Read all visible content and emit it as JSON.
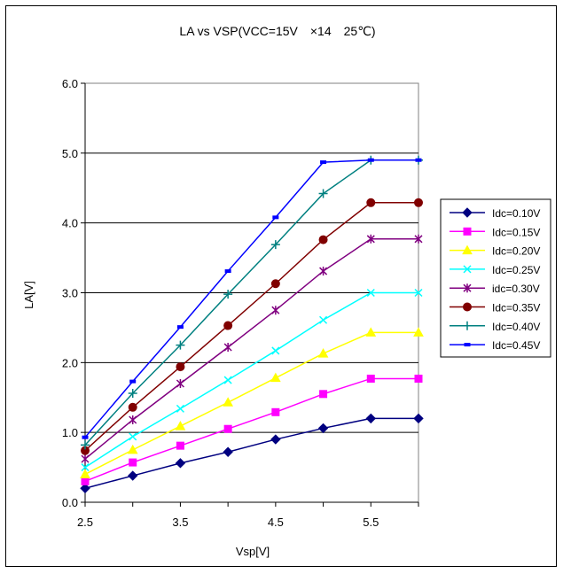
{
  "chart_data": {
    "type": "line",
    "title": "LA vs VSP(VCC=15V　×14　25℃)",
    "xlabel": "Vsp[V]",
    "ylabel": "LA[V]",
    "x": [
      2.5,
      3.0,
      3.5,
      4.0,
      4.5,
      5.0,
      5.5,
      6.0
    ],
    "xlim": [
      2.5,
      6.0
    ],
    "ylim": [
      0.0,
      6.0
    ],
    "x_ticks": [
      "2.5",
      "3.5",
      "4.5",
      "5.5"
    ],
    "y_ticks": [
      "0.0",
      "1.0",
      "2.0",
      "3.0",
      "4.0",
      "5.0",
      "6.0"
    ],
    "grid": "horizontal",
    "legend_position": "right",
    "series": [
      {
        "name": "Idc=0.10V",
        "color": "#000080",
        "marker": "diamond",
        "values": [
          0.2,
          0.38,
          0.56,
          0.72,
          0.9,
          1.06,
          1.2,
          1.2
        ]
      },
      {
        "name": "Idc=0.15V",
        "color": "#ff00ff",
        "marker": "square",
        "values": [
          0.3,
          0.57,
          0.81,
          1.05,
          1.29,
          1.55,
          1.77,
          1.77
        ]
      },
      {
        "name": "Idc=0.20V",
        "color": "#ffff00",
        "marker": "triangle",
        "values": [
          0.4,
          0.75,
          1.09,
          1.43,
          1.78,
          2.13,
          2.43,
          2.43
        ]
      },
      {
        "name": "Idc=0.25V",
        "color": "#00ffff",
        "marker": "x",
        "values": [
          0.5,
          0.94,
          1.34,
          1.75,
          2.17,
          2.61,
          3.0,
          3.0
        ]
      },
      {
        "name": "idc=0.30V",
        "color": "#800080",
        "marker": "star",
        "values": [
          0.62,
          1.18,
          1.7,
          2.22,
          2.75,
          3.31,
          3.77,
          3.77
        ]
      },
      {
        "name": "Idc=0.35V",
        "color": "#800000",
        "marker": "circle",
        "values": [
          0.74,
          1.36,
          1.94,
          2.53,
          3.13,
          3.76,
          4.29,
          4.29
        ]
      },
      {
        "name": "Idc=0.40V",
        "color": "#008080",
        "marker": "plus",
        "values": [
          0.82,
          1.56,
          2.25,
          2.98,
          3.69,
          4.42,
          4.9,
          4.9
        ]
      },
      {
        "name": "Idc=0.45V",
        "color": "#0000ff",
        "marker": "dash",
        "values": [
          0.93,
          1.73,
          2.51,
          3.31,
          4.08,
          4.87,
          4.9,
          4.9
        ]
      }
    ]
  }
}
